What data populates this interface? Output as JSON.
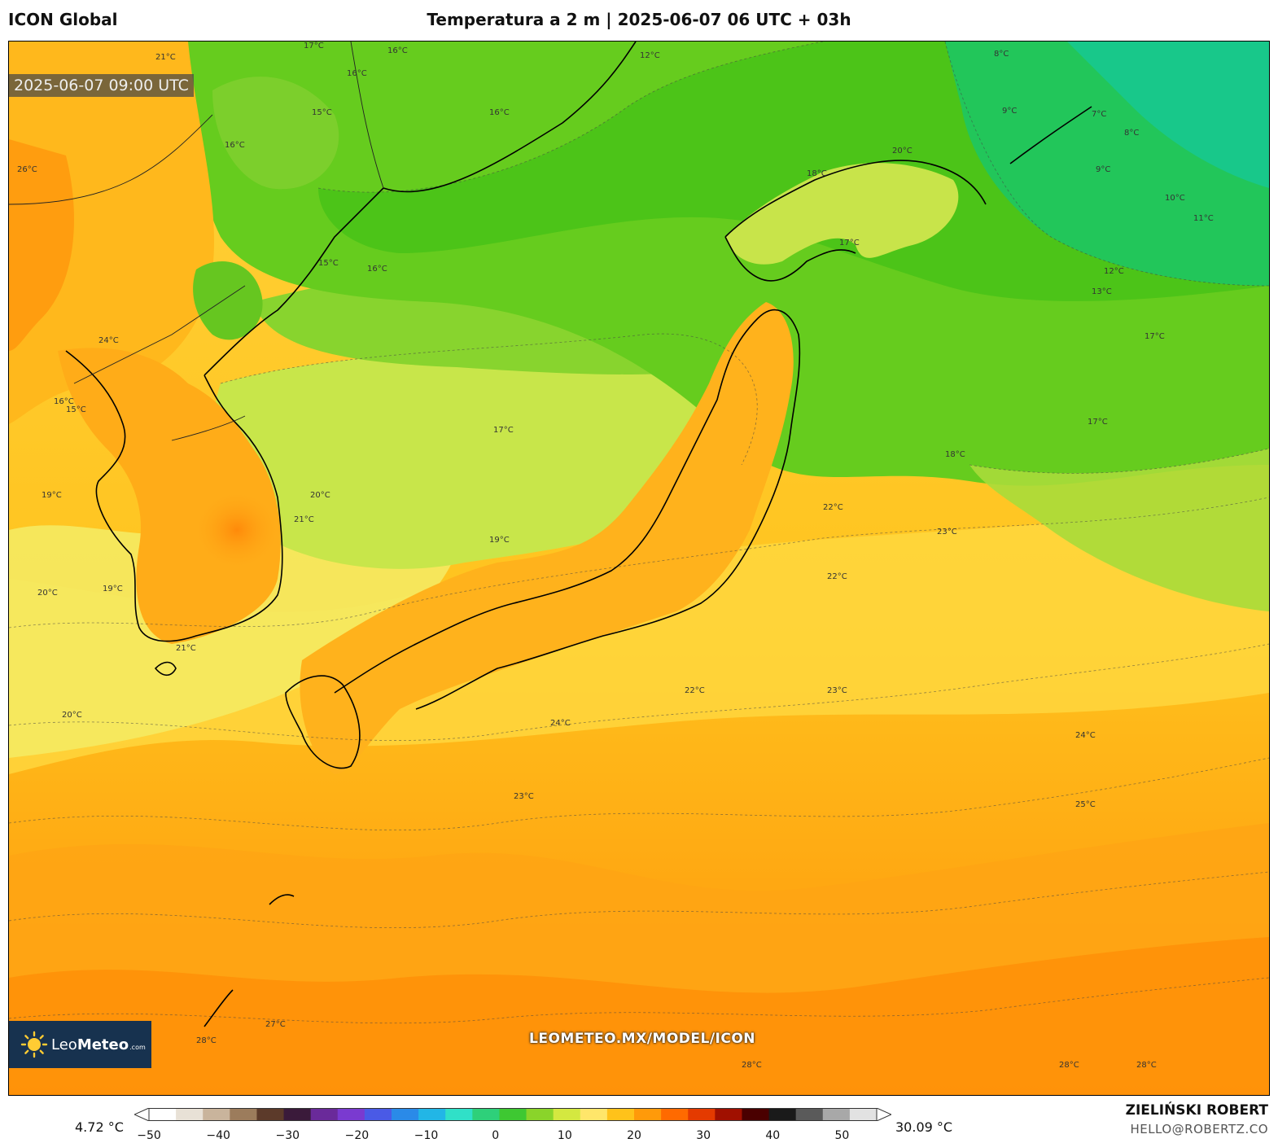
{
  "header": {
    "model": "ICON Global",
    "title": "Temperatura a 2 m | 2025-06-07 06 UTC + 03h"
  },
  "map": {
    "valid_time": "2025-06-07 09:00 UTC",
    "watermark": "LEOMETEO.MX/MODEL/ICON",
    "brand": {
      "prefix": "Leo",
      "bold": "Meteo",
      "suffix": ".com"
    },
    "contour_labels": [
      "21°C",
      "16°C",
      "16°C",
      "17°C",
      "16°C",
      "15°C",
      "16°C",
      "12°C",
      "8°C",
      "9°C",
      "7°C",
      "8°C",
      "9°C",
      "10°C",
      "11°C",
      "18°C",
      "20°C",
      "17°C",
      "16°C",
      "15°C",
      "13°C",
      "12°C",
      "17°C",
      "24°C",
      "16°C",
      "15°C",
      "17°C",
      "17°C",
      "18°C",
      "19°C",
      "19°C",
      "20°C",
      "21°C",
      "19°C",
      "20°C",
      "21°C",
      "20°C",
      "22°C",
      "23°C",
      "22°C",
      "22°C",
      "23°C",
      "24°C",
      "23°C",
      "24°C",
      "25°C",
      "27°C",
      "28°C",
      "28°C",
      "28°C",
      "28°C",
      "26°C"
    ]
  },
  "colorbar": {
    "min_label": "4.72 °C",
    "max_label": "30.09 °C",
    "ticks": [
      "−50",
      "−40",
      "−30",
      "−20",
      "−10",
      "0",
      "10",
      "20",
      "30",
      "40",
      "50"
    ],
    "range": [
      -50,
      55
    ],
    "colors": [
      "#ffffff",
      "#e8e1d6",
      "#c9b49c",
      "#9c7c5c",
      "#5c3a2a",
      "#3a1a3a",
      "#6a2a9a",
      "#7a3ad0",
      "#4a5ae6",
      "#2a8ae8",
      "#22b6e6",
      "#30e0c8",
      "#2ed07a",
      "#3ec832",
      "#8ad42a",
      "#d4e840",
      "#ffe66a",
      "#ffc21a",
      "#ff9a0a",
      "#ff6a00",
      "#e43a00",
      "#a01000",
      "#4a0000",
      "#1a1a1a",
      "#5a5a5a",
      "#a8a8a8",
      "#e2e2e2"
    ]
  },
  "credits": {
    "author": "ZIELIŃSKI ROBERT",
    "email": "HELLO@ROBERTZ.CO"
  }
}
